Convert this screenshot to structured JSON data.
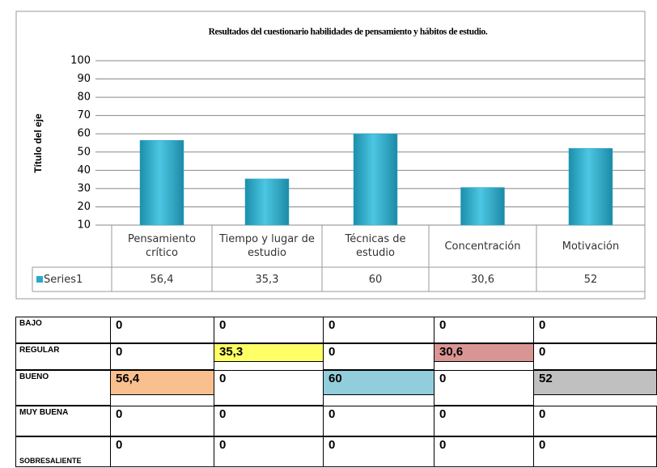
{
  "chart_data": {
    "type": "bar",
    "title": "Resultados  del cuestionario habilidades de pensamiento y hábitos de estudio.",
    "y_label": "Título del eje",
    "categories": [
      "Pensamiento crítico",
      "Tiempo y lugar de estudio",
      "Técnicas de estudio",
      "Concentración",
      "Motivación"
    ],
    "series": [
      {
        "name": "Series1",
        "color": "#2aa9c9",
        "values": [
          56.4,
          35.3,
          60,
          30.6,
          52
        ],
        "value_labels": [
          "56,4",
          "35,3",
          "60",
          "30,6",
          "52"
        ]
      }
    ],
    "ylim": [
      10,
      100
    ],
    "yticks": [
      10,
      20,
      30,
      40,
      50,
      60,
      70,
      80,
      90,
      100
    ],
    "grid": true
  },
  "table": {
    "rows": [
      {
        "label": "BAJO",
        "cells": [
          "0",
          "0",
          "0",
          "0",
          "0"
        ],
        "colors": [
          null,
          null,
          null,
          null,
          null
        ]
      },
      {
        "label": "REGULAR",
        "cells": [
          "0",
          "35,3",
          "0",
          "30,6",
          "0"
        ],
        "colors": [
          null,
          "#ffff66",
          null,
          "#d99594",
          null
        ]
      },
      {
        "label": "BUENO",
        "cells": [
          "56,4",
          "0",
          "60",
          "0",
          "52"
        ],
        "colors": [
          "#fabf8f",
          null,
          "#92cddc",
          null,
          "#c0c0c0"
        ]
      },
      {
        "label": "MUY BUENA",
        "cells": [
          "0",
          "0",
          "0",
          "0",
          "0"
        ],
        "colors": [
          null,
          null,
          null,
          null,
          null
        ]
      },
      {
        "label": "SOBRESALIENTE",
        "cells": [
          "0",
          "0",
          "0",
          "0",
          "0"
        ],
        "colors": [
          null,
          null,
          null,
          null,
          null
        ]
      }
    ]
  }
}
